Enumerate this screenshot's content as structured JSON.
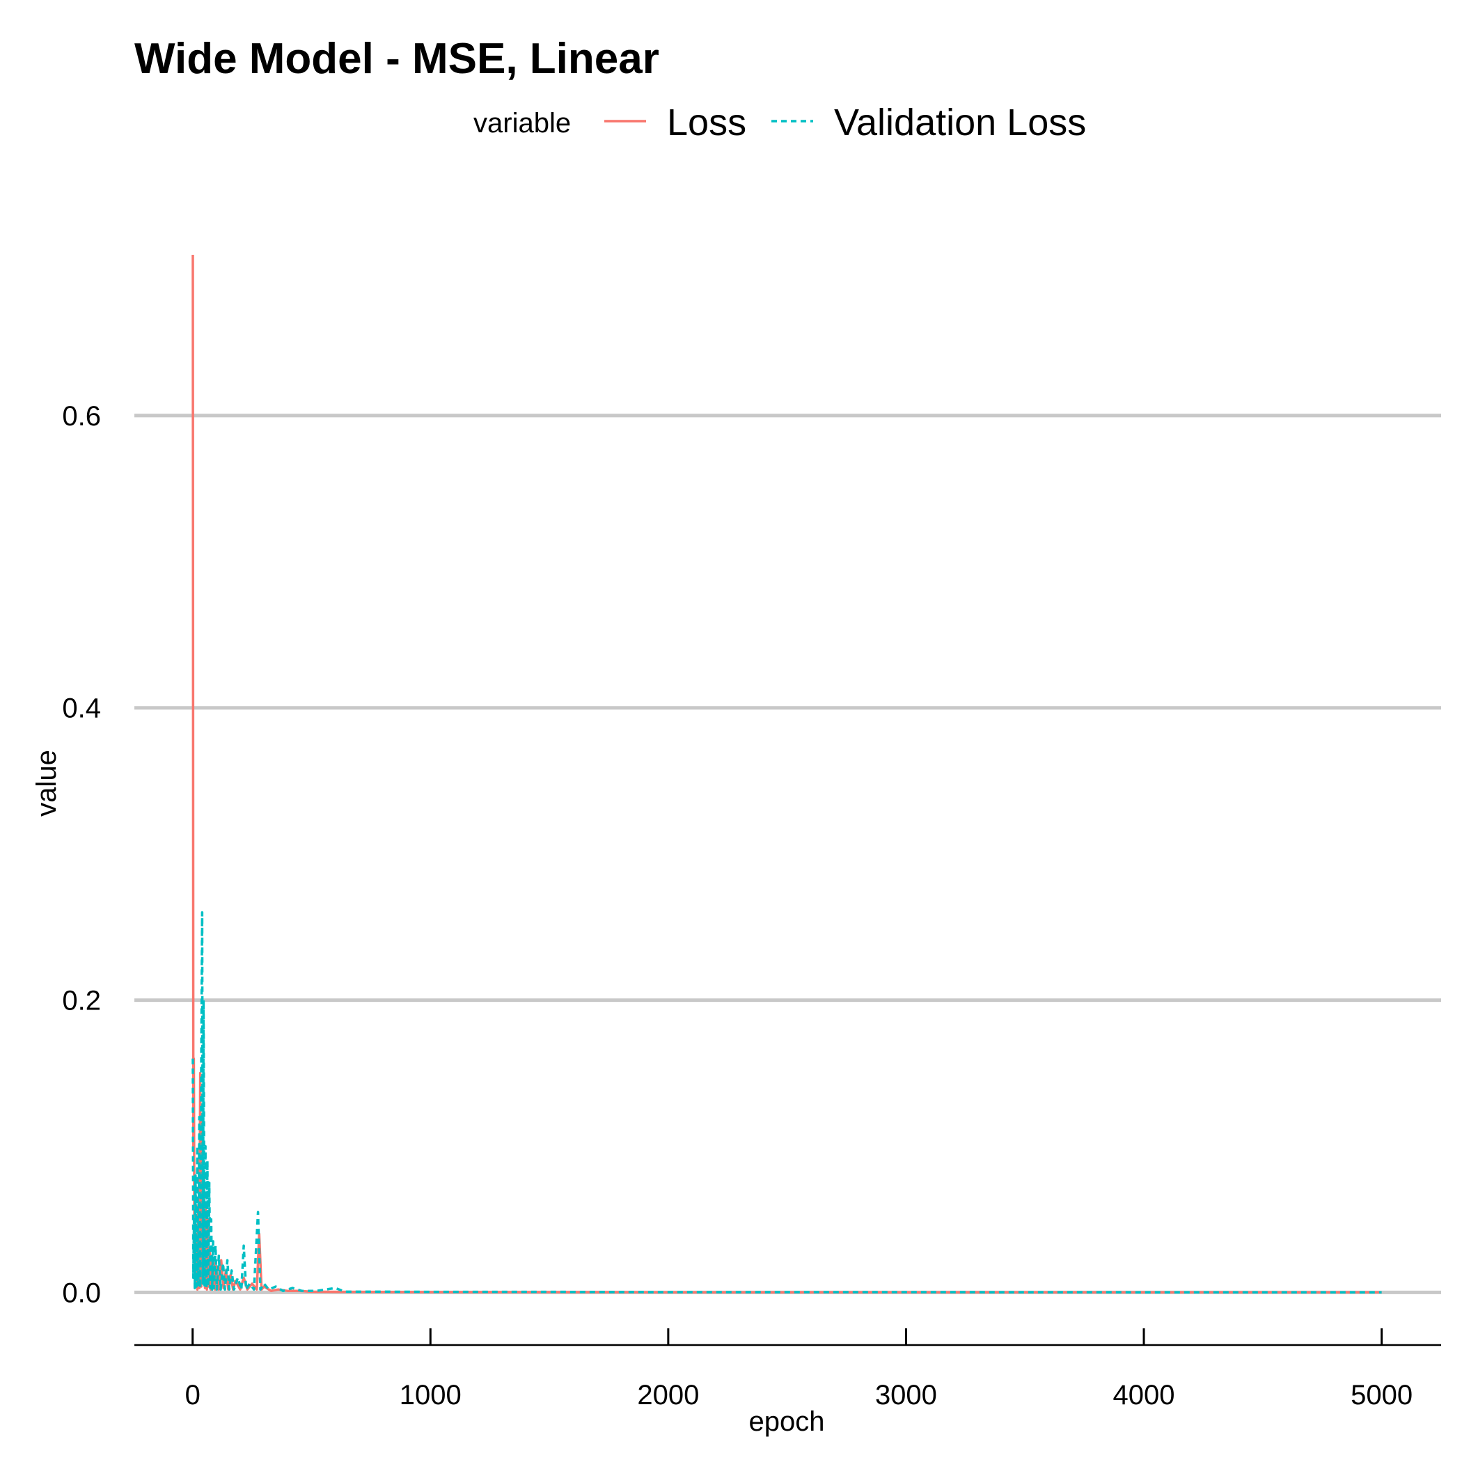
{
  "chart_data": {
    "type": "line",
    "title": "Wide Model - MSE, Linear",
    "xlabel": "epoch",
    "ylabel": "value",
    "legend": {
      "title": "variable",
      "placement": "top"
    },
    "xlim": [
      -245,
      5250
    ],
    "ylim": [
      -0.036,
      0.72
    ],
    "x_ticks": [
      0,
      1000,
      2000,
      3000,
      4000,
      5000
    ],
    "y_ticks": [
      0.0,
      0.2,
      0.4,
      0.6
    ],
    "y_tick_labels": [
      "0.0",
      "0.2",
      "0.4",
      "0.6"
    ],
    "x_tick_labels": [
      "0",
      "1000",
      "2000",
      "3000",
      "4000",
      "5000"
    ],
    "grid": {
      "major_y": true,
      "major_x": false
    },
    "series": [
      {
        "name": "Loss",
        "color": "#F8766D",
        "dash": "solid",
        "points": [
          [
            1,
            0.71
          ],
          [
            3,
            0.1
          ],
          [
            5,
            0.16
          ],
          [
            8,
            0.02
          ],
          [
            12,
            0.005
          ],
          [
            16,
            0.04
          ],
          [
            20,
            0.002
          ],
          [
            24,
            0.06
          ],
          [
            28,
            0.003
          ],
          [
            32,
            0.15
          ],
          [
            36,
            0.004
          ],
          [
            40,
            0.12
          ],
          [
            44,
            0.01
          ],
          [
            48,
            0.08
          ],
          [
            52,
            0.003
          ],
          [
            56,
            0.06
          ],
          [
            60,
            0.002
          ],
          [
            64,
            0.05
          ],
          [
            68,
            0.004
          ],
          [
            72,
            0.03
          ],
          [
            76,
            0.002
          ],
          [
            80,
            0.025
          ],
          [
            85,
            0.003
          ],
          [
            90,
            0.02
          ],
          [
            95,
            0.002
          ],
          [
            100,
            0.018
          ],
          [
            110,
            0.002
          ],
          [
            120,
            0.022
          ],
          [
            130,
            0.003
          ],
          [
            140,
            0.015
          ],
          [
            150,
            0.002
          ],
          [
            160,
            0.012
          ],
          [
            170,
            0.002
          ],
          [
            180,
            0.008
          ],
          [
            200,
            0.002
          ],
          [
            215,
            0.01
          ],
          [
            230,
            0.002
          ],
          [
            250,
            0.006
          ],
          [
            270,
            0.002
          ],
          [
            280,
            0.04
          ],
          [
            290,
            0.002
          ],
          [
            300,
            0.004
          ],
          [
            330,
            0.001
          ],
          [
            360,
            0.002
          ],
          [
            400,
            0.001
          ],
          [
            450,
            0.001
          ],
          [
            500,
            0.0005
          ],
          [
            600,
            0.0004
          ],
          [
            800,
            0.0003
          ],
          [
            1000,
            0.0002
          ],
          [
            1500,
            0.0002
          ],
          [
            2000,
            0.0001
          ],
          [
            3000,
            0.0001
          ],
          [
            4000,
            0.0001
          ],
          [
            5000,
            0.0001
          ]
        ]
      },
      {
        "name": "Validation Loss",
        "color": "#00BFC4",
        "dash": "dashed",
        "points": [
          [
            1,
            0.16
          ],
          [
            3,
            0.01
          ],
          [
            6,
            0.05
          ],
          [
            9,
            0.003
          ],
          [
            12,
            0.08
          ],
          [
            16,
            0.004
          ],
          [
            20,
            0.1
          ],
          [
            24,
            0.005
          ],
          [
            28,
            0.12
          ],
          [
            32,
            0.003
          ],
          [
            36,
            0.15
          ],
          [
            40,
            0.26
          ],
          [
            43,
            0.006
          ],
          [
            46,
            0.2
          ],
          [
            50,
            0.004
          ],
          [
            54,
            0.1
          ],
          [
            58,
            0.003
          ],
          [
            62,
            0.09
          ],
          [
            66,
            0.004
          ],
          [
            70,
            0.075
          ],
          [
            74,
            0.003
          ],
          [
            78,
            0.05
          ],
          [
            82,
            0.002
          ],
          [
            86,
            0.035
          ],
          [
            90,
            0.003
          ],
          [
            96,
            0.032
          ],
          [
            102,
            0.002
          ],
          [
            110,
            0.025
          ],
          [
            118,
            0.002
          ],
          [
            128,
            0.02
          ],
          [
            136,
            0.002
          ],
          [
            146,
            0.022
          ],
          [
            154,
            0.002
          ],
          [
            164,
            0.015
          ],
          [
            174,
            0.002
          ],
          [
            190,
            0.01
          ],
          [
            205,
            0.002
          ],
          [
            215,
            0.032
          ],
          [
            225,
            0.002
          ],
          [
            240,
            0.006
          ],
          [
            258,
            0.002
          ],
          [
            275,
            0.055
          ],
          [
            285,
            0.002
          ],
          [
            300,
            0.006
          ],
          [
            320,
            0.002
          ],
          [
            350,
            0.004
          ],
          [
            380,
            0.001
          ],
          [
            420,
            0.003
          ],
          [
            460,
            0.001
          ],
          [
            520,
            0.001
          ],
          [
            600,
            0.003
          ],
          [
            640,
            0.0005
          ],
          [
            800,
            0.0005
          ],
          [
            1000,
            0.0004
          ],
          [
            1450,
            0.0004
          ],
          [
            2000,
            0.0002
          ],
          [
            3000,
            0.0002
          ],
          [
            4000,
            0.0001
          ],
          [
            5000,
            0.0001
          ]
        ]
      }
    ]
  }
}
